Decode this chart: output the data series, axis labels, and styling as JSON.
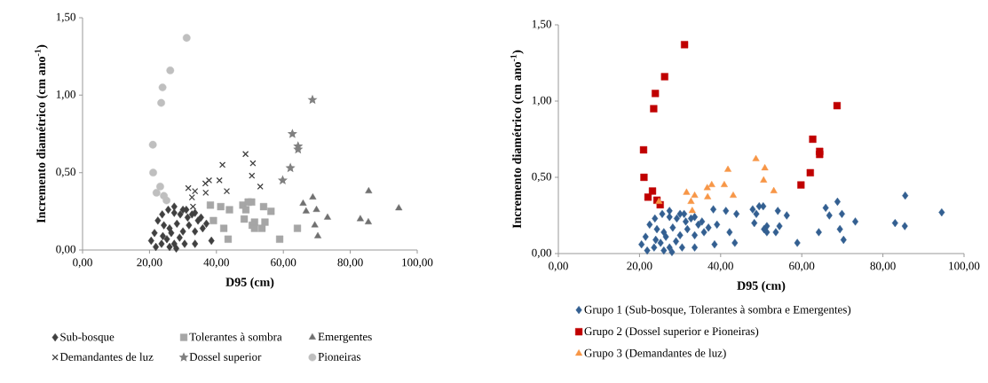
{
  "chart_data": [
    {
      "type": "scatter",
      "xlabel": "D95 (cm)",
      "ylabel": "Incremento diamétrico (cm ano$^{-1}$)",
      "xlim": [
        0,
        100
      ],
      "ylim": [
        0,
        1.5
      ],
      "xticks": [
        {
          "value": 0,
          "label": "0,00"
        },
        {
          "value": 20,
          "label": "20,00"
        },
        {
          "value": 40,
          "label": "40,00"
        },
        {
          "value": 60,
          "label": "60,00"
        },
        {
          "value": 80,
          "label": "80,00"
        },
        {
          "value": 100,
          "label": "100,00"
        }
      ],
      "yticks": [
        {
          "value": 0,
          "label": "0,00"
        },
        {
          "value": 0.5,
          "label": "0,50"
        },
        {
          "value": 1,
          "label": "1,00"
        },
        {
          "value": 1.5,
          "label": "1,50"
        }
      ],
      "legend": "bottom",
      "series": [
        {
          "name": "Sub-bosque",
          "color": "#404040",
          "marker": "diamond",
          "x": [
            20.5,
            21.9,
            23.6,
            25.2,
            26.0,
            27.4,
            28.0,
            30.5,
            33.6,
            38.5,
            22.5,
            24.3,
            26.0,
            28.2,
            30.0,
            31.8,
            33.6,
            23.8,
            25.6,
            27.4,
            29.2,
            31.0,
            32.7,
            34.5,
            35.4,
            27.4,
            30.0,
            31.4,
            33.6,
            21.5,
            24.0,
            29.0,
            26.5,
            35.9,
            37.0
          ],
          "values": [
            0.06,
            0.02,
            0.04,
            0.07,
            0.02,
            0.04,
            0.01,
            0.04,
            0.04,
            0.06,
            0.19,
            0.16,
            0.14,
            0.17,
            0.12,
            0.16,
            0.12,
            0.23,
            0.26,
            0.24,
            0.23,
            0.26,
            0.23,
            0.19,
            0.21,
            0.28,
            0.26,
            0.21,
            0.24,
            0.11,
            0.09,
            0.08,
            0.11,
            0.14,
            0.17
          ]
        },
        {
          "name": "Tolerantes à sombra",
          "color": "#a6a6a6",
          "marker": "square",
          "x": [
            38.2,
            39.1,
            41.3,
            42.2,
            43.5,
            43.9,
            47.9,
            48.8,
            49.5,
            48.3,
            50.5,
            51.4,
            50.7,
            51.4,
            53.6,
            54.1,
            54.5,
            56.3,
            58.9,
            64.2
          ],
          "values": [
            0.29,
            0.19,
            0.28,
            0.14,
            0.07,
            0.26,
            0.29,
            0.26,
            0.31,
            0.2,
            0.31,
            0.18,
            0.16,
            0.14,
            0.14,
            0.28,
            0.18,
            0.25,
            0.07,
            0.14
          ]
        },
        {
          "name": "Emergentes",
          "color": "#707070",
          "marker": "triangle",
          "x": [
            65.9,
            68.8,
            66.8,
            69.9,
            73.2,
            69.4,
            70.3,
            85.5,
            83.0,
            85.4,
            94.5
          ],
          "values": [
            0.3,
            0.34,
            0.25,
            0.26,
            0.21,
            0.16,
            0.09,
            0.38,
            0.2,
            0.18,
            0.27
          ]
        },
        {
          "name": "Demandantes de luz",
          "color": "#404040",
          "marker": "cross",
          "x": [
            31.6,
            32.7,
            33.0,
            33.6,
            36.7,
            36.8,
            37.8,
            40.9,
            41.8,
            43.1,
            48.7,
            50.9,
            50.6,
            53.1
          ],
          "values": [
            0.4,
            0.34,
            0.28,
            0.38,
            0.43,
            0.37,
            0.45,
            0.45,
            0.55,
            0.38,
            0.62,
            0.56,
            0.48,
            0.41
          ]
        },
        {
          "name": "Dossel superior",
          "color": "#808080",
          "marker": "star",
          "x": [
            68.7,
            62.7,
            64.4,
            64.4,
            62.1,
            59.8
          ],
          "values": [
            0.97,
            0.75,
            0.67,
            0.65,
            0.53,
            0.45
          ]
        },
        {
          "name": "Pioneiras",
          "color": "#bfbfbf",
          "marker": "circle",
          "x": [
            31.1,
            26.2,
            23.9,
            23.5,
            21.0,
            21.1,
            23.2,
            22.1,
            24.3,
            25.1
          ],
          "values": [
            1.37,
            1.16,
            1.05,
            0.95,
            0.68,
            0.5,
            0.41,
            0.37,
            0.35,
            0.32
          ]
        }
      ]
    },
    {
      "type": "scatter",
      "xlabel": "D95 (cm)",
      "ylabel": "Incremento diamétrico (cm ano$^{-1}$)",
      "xlim": [
        0,
        100
      ],
      "ylim": [
        0,
        1.5
      ],
      "xticks": [
        {
          "value": 0,
          "label": "0,00"
        },
        {
          "value": 20,
          "label": "20,00"
        },
        {
          "value": 40,
          "label": "40,00"
        },
        {
          "value": 60,
          "label": "60,00"
        },
        {
          "value": 80,
          "label": "80,00"
        },
        {
          "value": 100,
          "label": "100,00"
        }
      ],
      "yticks": [
        {
          "value": 0,
          "label": "0,00"
        },
        {
          "value": 0.5,
          "label": "0,50"
        },
        {
          "value": 1,
          "label": "1,00"
        },
        {
          "value": 1.5,
          "label": "1,50"
        }
      ],
      "legend": "bottom",
      "series": [
        {
          "name": "Grupo 1 (Sub-bosque, Tolerantes à sombra e Emergentes)",
          "color": "#335f91",
          "marker": "diamond",
          "x": [
            20.5,
            21.9,
            23.6,
            25.2,
            26.0,
            27.4,
            28.0,
            30.5,
            33.6,
            38.5,
            22.5,
            24.3,
            26.0,
            28.2,
            30.0,
            31.8,
            33.6,
            23.8,
            25.6,
            27.4,
            29.2,
            31.0,
            32.7,
            34.5,
            35.4,
            27.4,
            30.0,
            31.4,
            33.6,
            21.5,
            24.0,
            29.0,
            26.5,
            35.9,
            37.0,
            38.2,
            39.1,
            41.3,
            42.2,
            43.5,
            43.9,
            47.9,
            48.8,
            49.5,
            48.3,
            50.5,
            51.4,
            50.7,
            51.4,
            53.6,
            54.1,
            54.5,
            56.3,
            58.9,
            64.2,
            65.9,
            68.8,
            66.8,
            69.9,
            73.2,
            69.4,
            70.3,
            85.5,
            83.0,
            85.4,
            94.5
          ],
          "values": [
            0.06,
            0.02,
            0.04,
            0.07,
            0.02,
            0.04,
            0.01,
            0.04,
            0.04,
            0.06,
            0.19,
            0.16,
            0.14,
            0.17,
            0.12,
            0.16,
            0.12,
            0.23,
            0.26,
            0.24,
            0.23,
            0.26,
            0.23,
            0.19,
            0.21,
            0.28,
            0.26,
            0.21,
            0.24,
            0.11,
            0.09,
            0.08,
            0.11,
            0.14,
            0.17,
            0.29,
            0.19,
            0.28,
            0.14,
            0.07,
            0.26,
            0.29,
            0.26,
            0.31,
            0.2,
            0.31,
            0.18,
            0.16,
            0.14,
            0.14,
            0.28,
            0.18,
            0.25,
            0.07,
            0.14,
            0.3,
            0.34,
            0.25,
            0.26,
            0.21,
            0.16,
            0.09,
            0.38,
            0.2,
            0.18,
            0.27
          ]
        },
        {
          "name": "Grupo 2 (Dossel superior e Pioneiras)",
          "color": "#c00000",
          "marker": "square",
          "x": [
            68.7,
            62.7,
            64.4,
            64.4,
            62.1,
            59.8,
            31.1,
            26.2,
            23.9,
            23.5,
            21.0,
            21.1,
            23.2,
            22.1,
            24.3,
            25.1
          ],
          "values": [
            0.97,
            0.75,
            0.67,
            0.65,
            0.53,
            0.45,
            1.37,
            1.16,
            1.05,
            0.95,
            0.68,
            0.5,
            0.41,
            0.37,
            0.35,
            0.32
          ]
        },
        {
          "name": "Grupo 3 (Demandantes de luz)",
          "color": "#f79646",
          "marker": "triangle",
          "x": [
            24.8,
            31.6,
            32.7,
            33.0,
            33.6,
            36.7,
            36.8,
            37.8,
            40.9,
            41.8,
            43.1,
            48.7,
            50.9,
            50.6,
            53.1
          ],
          "values": [
            0.34,
            0.4,
            0.34,
            0.28,
            0.38,
            0.43,
            0.37,
            0.45,
            0.45,
            0.55,
            0.38,
            0.62,
            0.56,
            0.48,
            0.41
          ]
        }
      ]
    }
  ]
}
